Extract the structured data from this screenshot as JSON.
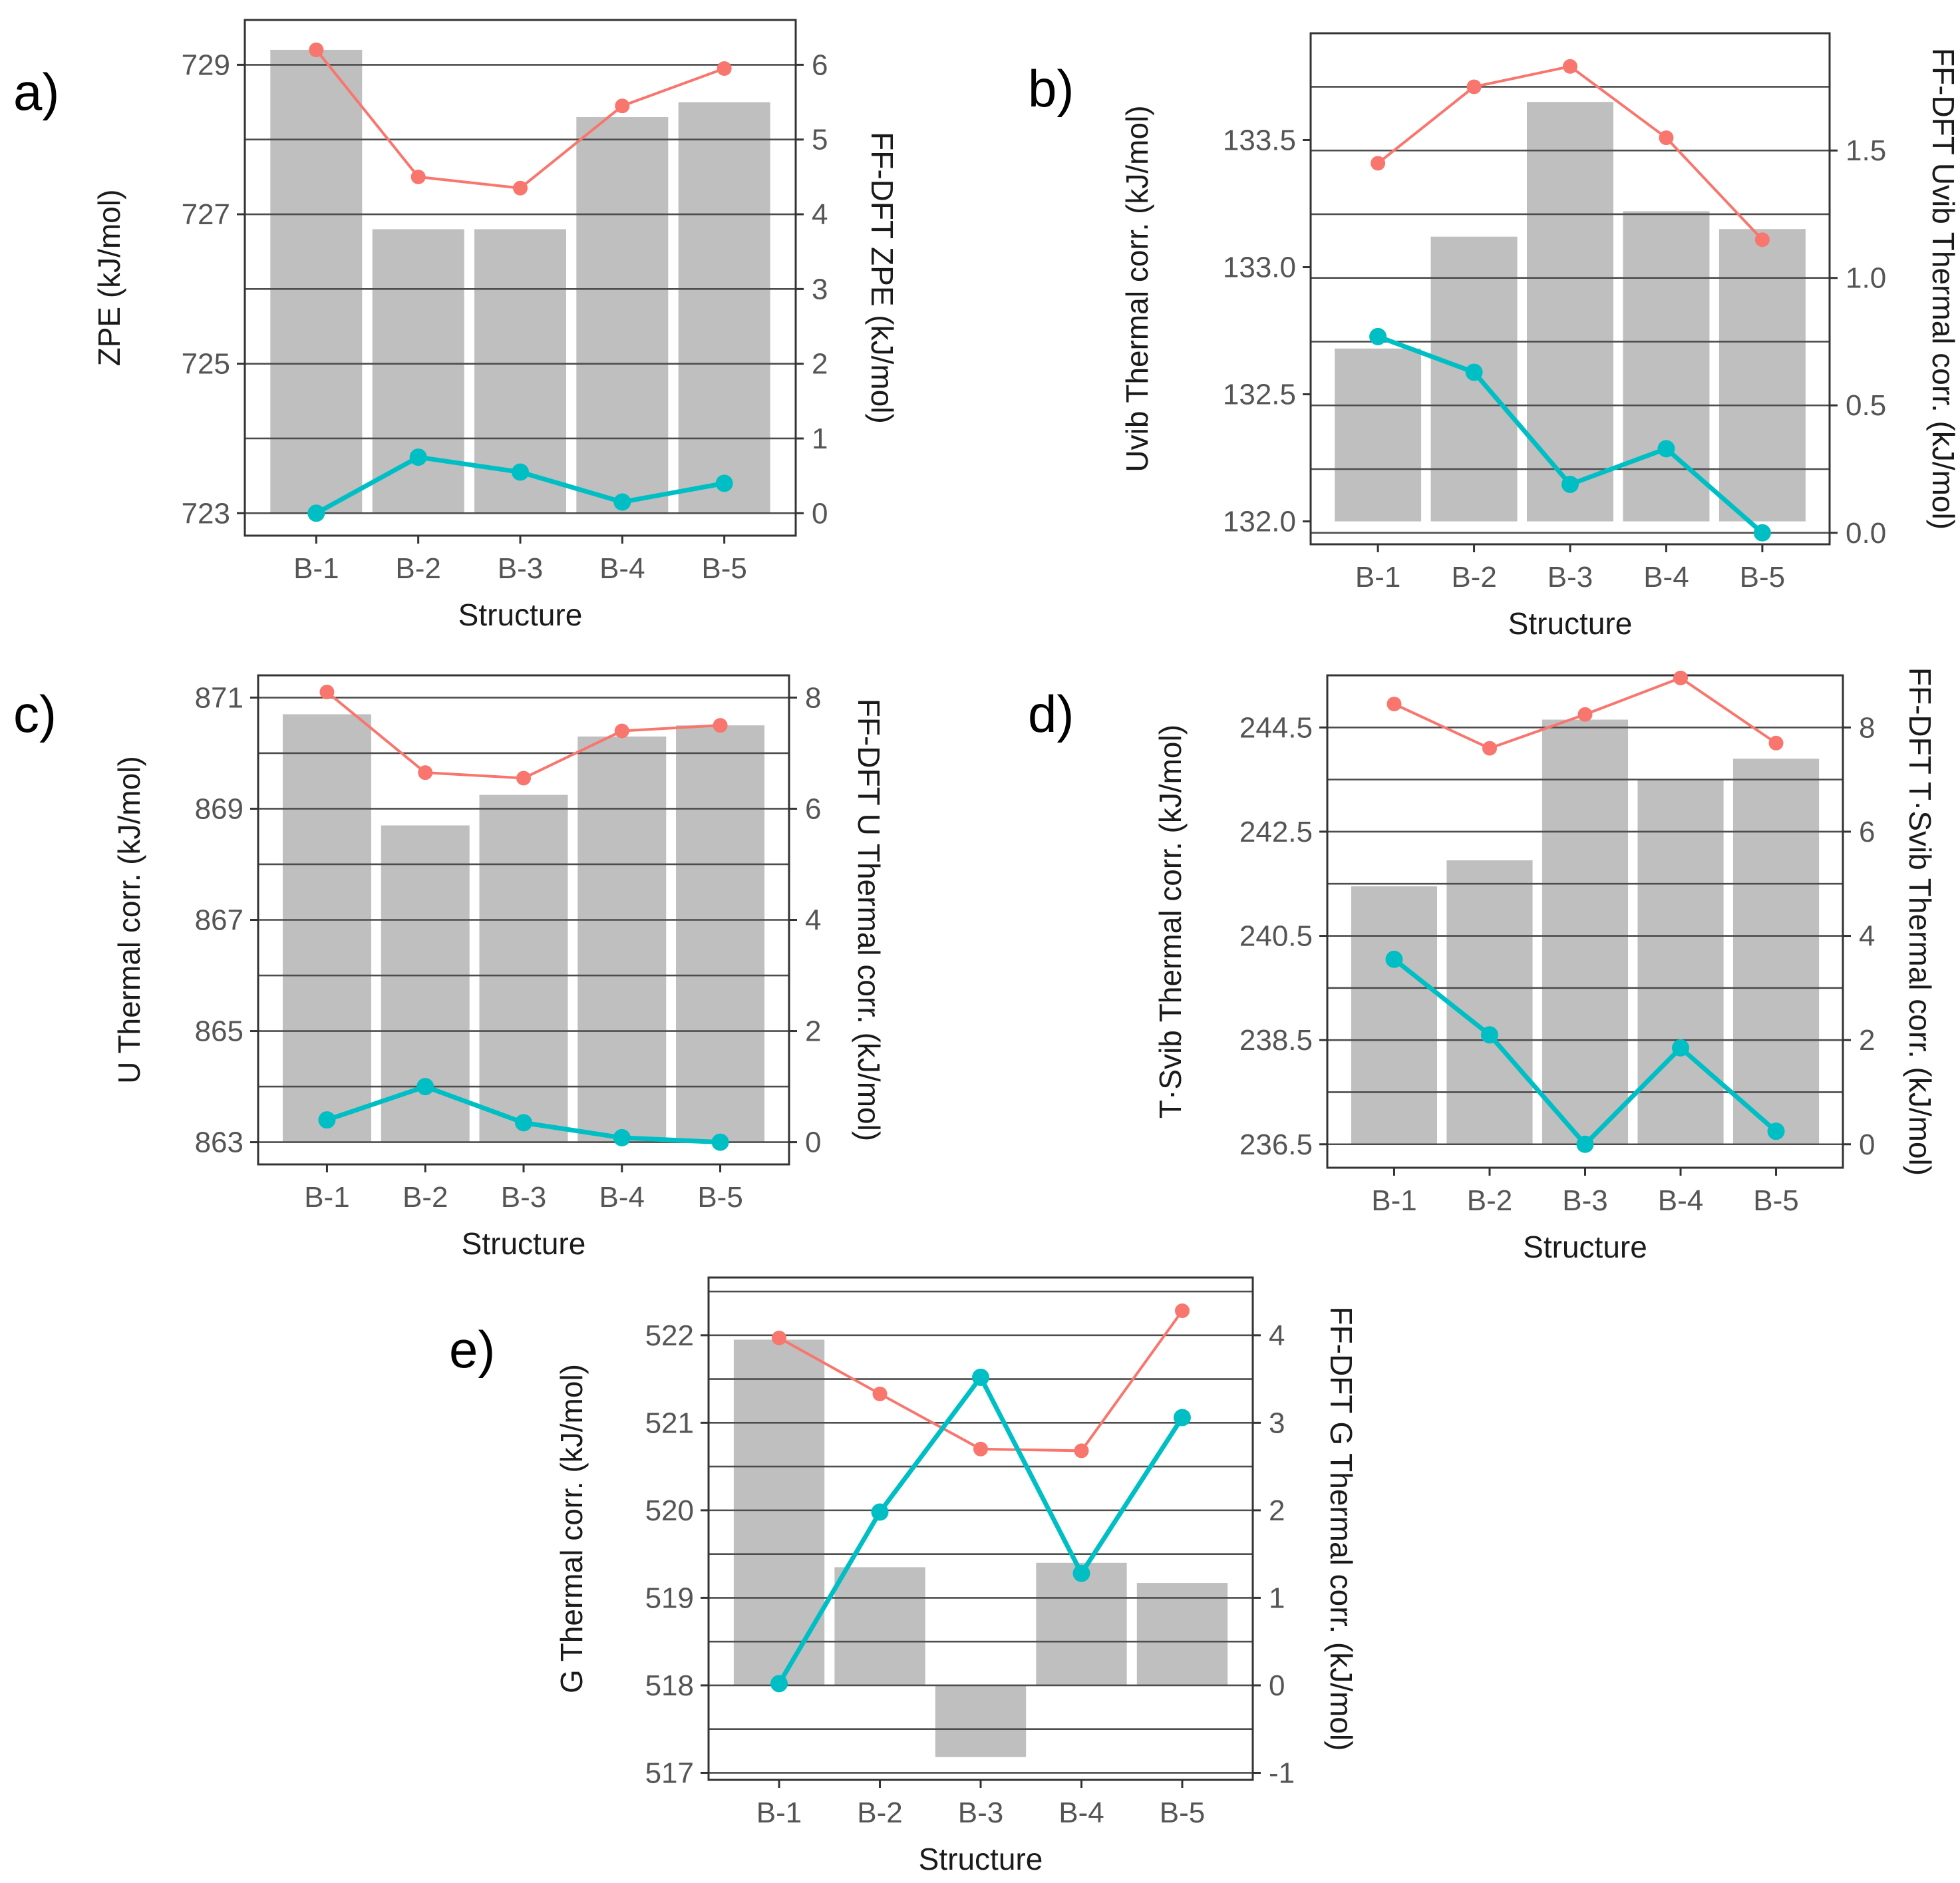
{
  "figure": {
    "panels": [
      "a)",
      "b)",
      "c)",
      "d)",
      "e)"
    ]
  },
  "colors": {
    "bar": "#bfbfbf",
    "line_upper": "#f8766d",
    "line_lower": "#00bfc4",
    "grid": "#4d4d4d",
    "axis": "#333333"
  },
  "chart_data": [
    {
      "panel": "a)",
      "type": "bar",
      "xlabel": "Structure",
      "ylabel": "ZPE (kJ/mol)",
      "y2label": "FF-DFT ZPE (kJ/mol)",
      "categories": [
        "B-1",
        "B-2",
        "B-3",
        "B-4",
        "B-5"
      ],
      "ylim": [
        722.7,
        729.6
      ],
      "yticks": [
        723,
        725,
        727,
        729
      ],
      "y2lim": [
        -0.3,
        6.6
      ],
      "y2ticks": [
        0,
        1,
        2,
        3,
        4,
        5,
        6
      ],
      "y2ticklabels": [
        "0",
        "1",
        "2",
        "3",
        "4",
        "5",
        "6"
      ],
      "gridlines_y2": [
        0,
        1,
        2,
        3,
        4,
        5,
        6
      ],
      "bar_base": 723,
      "series": [
        {
          "name": "bars",
          "axis": "left",
          "values": [
            729.2,
            726.8,
            726.8,
            728.3,
            728.5
          ]
        },
        {
          "name": "upper",
          "axis": "right",
          "values": [
            6.2,
            4.5,
            4.35,
            5.45,
            5.95
          ]
        },
        {
          "name": "lower",
          "axis": "right",
          "values": [
            0.0,
            0.75,
            0.55,
            0.15,
            0.4
          ]
        }
      ]
    },
    {
      "panel": "b)",
      "type": "bar",
      "xlabel": "Structure",
      "ylabel": "Uvib Thermal corr. (kJ/mol)",
      "y2label": "FF-DFT Uvib Thermal corr. (kJ/mol)",
      "categories": [
        "B-1",
        "B-2",
        "B-3",
        "B-4",
        "B-5"
      ],
      "ylim": [
        131.91,
        133.92
      ],
      "yticks": [
        132.0,
        132.5,
        133.0,
        133.5
      ],
      "yticklabels": [
        "132.0",
        "132.5",
        "133.0",
        "133.5"
      ],
      "y2lim": [
        -0.045,
        1.96
      ],
      "y2ticks": [
        0.0,
        0.5,
        1.0,
        1.5
      ],
      "y2ticklabels": [
        "0.0",
        "0.5",
        "1.0",
        "1.5"
      ],
      "gridlines_y2": [
        0.0,
        0.25,
        0.5,
        0.75,
        1.0,
        1.25,
        1.5,
        1.75
      ],
      "bar_base": 132.0,
      "series": [
        {
          "name": "bars",
          "axis": "left",
          "values": [
            132.68,
            133.12,
            133.65,
            133.22,
            133.15
          ]
        },
        {
          "name": "upper",
          "axis": "right",
          "values": [
            1.45,
            1.75,
            1.83,
            1.55,
            1.15
          ]
        },
        {
          "name": "lower",
          "axis": "right",
          "values": [
            0.77,
            0.63,
            0.19,
            0.33,
            0.0
          ]
        }
      ]
    },
    {
      "panel": "c)",
      "type": "bar",
      "xlabel": "Structure",
      "ylabel": "U Thermal corr. (kJ/mol)",
      "y2label": "FF-DFT U Thermal corr. (kJ/mol)",
      "categories": [
        "B-1",
        "B-2",
        "B-3",
        "B-4",
        "B-5"
      ],
      "ylim": [
        862.6,
        871.4
      ],
      "yticks": [
        863,
        865,
        867,
        869,
        871
      ],
      "y2lim": [
        -0.4,
        8.4
      ],
      "y2ticks": [
        0,
        2,
        4,
        6,
        8
      ],
      "y2ticklabels": [
        "0",
        "2",
        "4",
        "6",
        "8"
      ],
      "gridlines_y2": [
        0,
        1,
        2,
        3,
        4,
        5,
        6,
        7,
        8
      ],
      "bar_base": 863,
      "series": [
        {
          "name": "bars",
          "axis": "left",
          "values": [
            870.7,
            868.7,
            869.25,
            870.3,
            870.5
          ]
        },
        {
          "name": "upper",
          "axis": "right",
          "values": [
            8.1,
            6.65,
            6.55,
            7.4,
            7.5
          ]
        },
        {
          "name": "lower",
          "axis": "right",
          "values": [
            0.4,
            1.0,
            0.35,
            0.08,
            0.0
          ]
        }
      ]
    },
    {
      "panel": "d)",
      "type": "bar",
      "xlabel": "Structure",
      "ylabel": "T·Svib Thermal corr. (kJ/mol)",
      "y2label": "FF-DFT T·Svib Thermal corr. (kJ/mol)",
      "categories": [
        "B-1",
        "B-2",
        "B-3",
        "B-4",
        "B-5"
      ],
      "ylim": [
        236.05,
        245.5
      ],
      "yticks": [
        236.5,
        238.5,
        240.5,
        242.5,
        244.5
      ],
      "yticklabels": [
        "236.5",
        "238.5",
        "240.5",
        "242.5",
        "244.5"
      ],
      "y2lim": [
        -0.45,
        9.0
      ],
      "y2ticks": [
        0,
        2,
        4,
        6,
        8
      ],
      "y2ticklabels": [
        "0",
        "2",
        "4",
        "6",
        "8"
      ],
      "gridlines_y2": [
        0,
        1,
        2,
        3,
        4,
        5,
        6,
        7,
        8,
        9
      ],
      "bar_base": 236.5,
      "series": [
        {
          "name": "bars",
          "axis": "left",
          "values": [
            241.45,
            241.95,
            244.65,
            243.5,
            243.9
          ]
        },
        {
          "name": "upper",
          "axis": "right",
          "values": [
            8.45,
            7.6,
            8.25,
            8.95,
            7.7
          ]
        },
        {
          "name": "lower",
          "axis": "right",
          "values": [
            3.55,
            2.1,
            0.0,
            1.85,
            0.25
          ]
        }
      ]
    },
    {
      "panel": "e)",
      "type": "bar",
      "xlabel": "Structure",
      "ylabel": "G Thermal corr. (kJ/mol)",
      "y2label": "FF-DFT G Thermal corr. (kJ/mol)",
      "categories": [
        "B-1",
        "B-2",
        "B-3",
        "B-4",
        "B-5"
      ],
      "ylim": [
        516.92,
        522.66
      ],
      "yticks": [
        517,
        518,
        519,
        520,
        521,
        522
      ],
      "y2lim": [
        -1.08,
        4.66
      ],
      "y2ticks": [
        -1,
        0,
        1,
        2,
        3,
        4
      ],
      "y2ticklabels": [
        "-1",
        "0",
        "1",
        "2",
        "3",
        "4"
      ],
      "gridlines_y2": [
        -1,
        -0.5,
        0,
        0.5,
        1,
        1.5,
        2,
        2.5,
        3,
        3.5,
        4,
        4.5
      ],
      "bar_base": 518,
      "series": [
        {
          "name": "bars",
          "axis": "left",
          "values": [
            521.95,
            519.35,
            517.18,
            519.4,
            519.17
          ]
        },
        {
          "name": "upper",
          "axis": "right",
          "values": [
            3.97,
            3.33,
            2.7,
            2.68,
            4.28
          ]
        },
        {
          "name": "lower",
          "axis": "right",
          "values": [
            0.02,
            1.98,
            3.52,
            1.28,
            3.06
          ]
        }
      ]
    }
  ]
}
